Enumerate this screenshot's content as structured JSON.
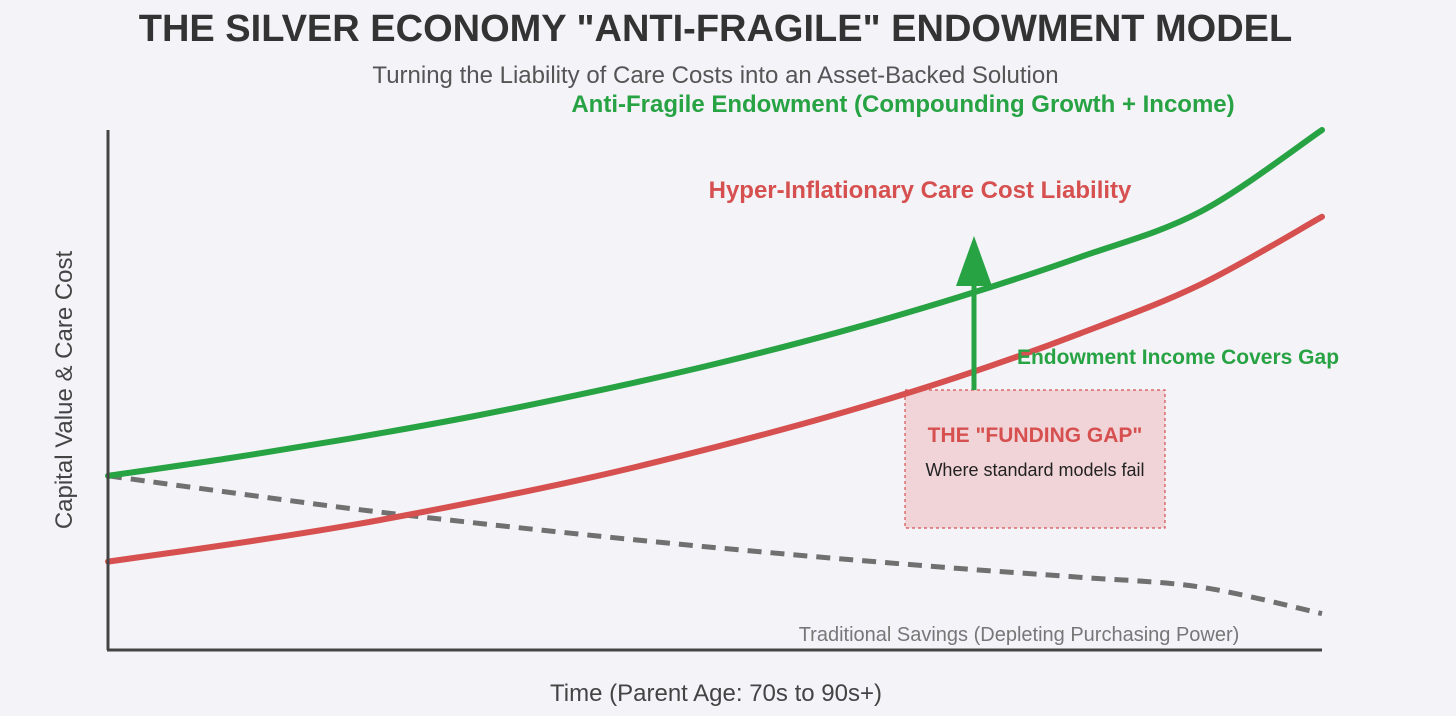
{
  "title": "THE SILVER ECONOMY \"ANTI-FRAGILE\" ENDOWMENT MODEL",
  "subtitle": "Turning the Liability of Care Costs into an Asset-Backed Solution",
  "colors": {
    "endowment": "#27a344",
    "care_cost": "#d65050",
    "savings": "#707070",
    "gap_fill": "#f1d4d8",
    "axis": "#444444"
  },
  "chart_data": {
    "type": "line",
    "title": "THE SILVER ECONOMY \"ANTI-FRAGILE\" ENDOWMENT MODEL",
    "subtitle": "Turning the Liability of Care Costs into an Asset-Backed Solution",
    "xlabel": "Time (Parent Age: 70s to 90s+)",
    "ylabel": "Capital Value & Care Cost",
    "xlim": [
      0,
      10
    ],
    "ylim": [
      0,
      10
    ],
    "grid": false,
    "x": [
      0,
      1,
      2,
      3,
      4,
      5,
      6,
      7,
      8,
      9,
      10
    ],
    "series": [
      {
        "name": "Anti-Fragile Endowment (Compounding Growth + Income)",
        "style": "solid",
        "color": "#27a344",
        "values": [
          3.35,
          3.69,
          4.07,
          4.49,
          4.97,
          5.5,
          6.1,
          6.78,
          7.55,
          8.43,
          10.0
        ]
      },
      {
        "name": "Hyper-Inflationary Care Cost Liability",
        "style": "solid",
        "color": "#d65050",
        "values": [
          1.7,
          2.03,
          2.4,
          2.84,
          3.33,
          3.9,
          4.53,
          5.25,
          6.08,
          7.03,
          8.33
        ]
      },
      {
        "name": "Traditional Savings (Depleting Purchasing Power)",
        "style": "dashed",
        "color": "#707070",
        "values": [
          3.35,
          3.03,
          2.72,
          2.45,
          2.2,
          1.97,
          1.76,
          1.57,
          1.4,
          1.21,
          0.7
        ]
      }
    ],
    "annotations": {
      "endowment_label": "Anti-Fragile Endowment (Compounding Growth + Income)",
      "care_label": "Hyper-Inflationary Care Cost Liability",
      "savings_label": "Traditional Savings (Depleting Purchasing Power)",
      "income_label": "Endowment Income Covers Gap",
      "gap_title": "THE \"FUNDING GAP\"",
      "gap_subtitle": "Where standard models fail"
    }
  }
}
